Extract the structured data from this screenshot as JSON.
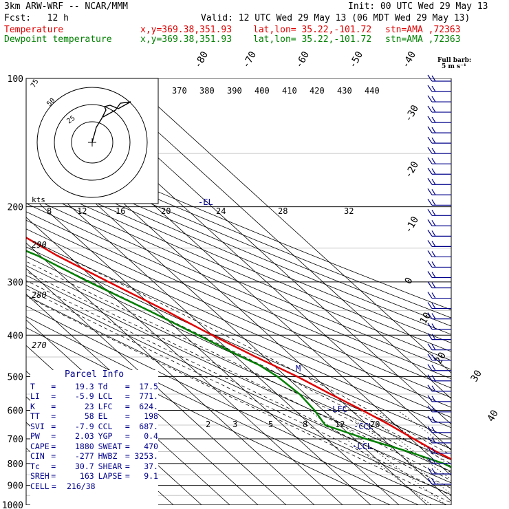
{
  "header": {
    "model": "3km ARW-WRF -- NCAR/MMM",
    "init": "Init: 00 UTC Wed 29 May 13",
    "fcst": "Fcst:   12 h",
    "valid": "Valid: 12 UTC Wed 29 May 13 (06 MDT Wed 29 May 13)",
    "temp_label": "Temperature",
    "dew_label": "Dewpoint temperature",
    "xy": "x,y=369.38,351.93",
    "latlon": "lat,lon= 35.22,-101.72",
    "stn": "stn=AMA ,72363"
  },
  "colors": {
    "temperature": "#e00000",
    "dewpoint": "#008000",
    "text": "#000000",
    "annotation": "#00008b",
    "hodograph": "#000000"
  },
  "barb_header": {
    "line1": "Full barb:",
    "line2": "5 m s⁻¹"
  },
  "parcel_info": {
    "title": "Parcel Info",
    "rows": [
      {
        "l1": "T",
        "v1": "19.3",
        "l2": "Td",
        "v2": "17.5"
      },
      {
        "l1": "LI",
        "v1": "-5.9",
        "l2": "LCL",
        "v2": "771."
      },
      {
        "l1": "K",
        "v1": "23",
        "l2": "LFC",
        "v2": "624."
      },
      {
        "l1": "TT",
        "v1": "58",
        "l2": "EL",
        "v2": "198"
      },
      {
        "l1": "SVI",
        "v1": "-7.9",
        "l2": "CCL",
        "v2": "687."
      },
      {
        "l1": "PW",
        "v1": "2.03",
        "l2": "YGP",
        "v2": "0.4"
      },
      {
        "l1": "CAPE",
        "v1": "1880",
        "l2": "SWEAT",
        "v2": "470"
      },
      {
        "l1": "CIN",
        "v1": "-277",
        "l2": "HWBZ",
        "v2": "3253."
      },
      {
        "l1": "Tc",
        "v1": "30.7",
        "l2": "SHEAR",
        "v2": "37."
      },
      {
        "l1": "SREH",
        "v1": "163",
        "l2": "LAPSE",
        "v2": "9.1"
      },
      {
        "l1": "CELL",
        "v1": "216/38",
        "l2": "",
        "v2": ""
      }
    ]
  },
  "chart_data": {
    "type": "skew-t",
    "pressure_levels": [
      100,
      200,
      300,
      400,
      500,
      600,
      700,
      800,
      900,
      1000
    ],
    "isotherm_labels": [
      "-80",
      "-70",
      "-60",
      "-50",
      "-40",
      "-30",
      "-20",
      "-10",
      "0",
      "10",
      "20",
      "30",
      "40"
    ],
    "theta_e_labels": [
      "370",
      "380",
      "390",
      "400",
      "410",
      "420",
      "430",
      "440"
    ],
    "hodo_speed_labels": [
      "8",
      "12",
      "16",
      "20",
      "24",
      "28",
      "32"
    ],
    "hodo_units": "kts",
    "mixing_ratio_labels": [
      "2",
      "3",
      "5",
      "8",
      "12",
      "20"
    ],
    "dry_adiabat_labels": [
      "290",
      "280",
      "270"
    ],
    "hodo_ring_labels": [
      "75",
      "50",
      "25"
    ],
    "annotations": [
      {
        "text": "-EL",
        "pressure": 198
      },
      {
        "text": "-LFC",
        "pressure": 624
      },
      {
        "text": "-CCL",
        "pressure": 687
      },
      {
        "text": "-LCL",
        "pressure": 771
      },
      {
        "text": "M",
        "pressure": 500
      }
    ],
    "temperature": [
      [
        100,
        -57
      ],
      [
        125,
        -59
      ],
      [
        150,
        -56
      ],
      [
        175,
        -52
      ],
      [
        200,
        -55
      ],
      [
        230,
        -49
      ],
      [
        260,
        -44
      ],
      [
        300,
        -36
      ],
      [
        350,
        -27
      ],
      [
        400,
        -20
      ],
      [
        450,
        -13
      ],
      [
        500,
        -6
      ],
      [
        550,
        -1
      ],
      [
        600,
        4
      ],
      [
        650,
        8
      ],
      [
        700,
        11
      ],
      [
        750,
        14
      ],
      [
        790,
        17
      ],
      [
        800,
        16
      ],
      [
        830,
        15
      ],
      [
        860,
        18
      ],
      [
        875,
        19
      ]
    ],
    "dewpoint": [
      [
        100,
        -78
      ],
      [
        125,
        -83
      ],
      [
        150,
        -87
      ],
      [
        175,
        -87
      ],
      [
        200,
        -72
      ],
      [
        230,
        -62
      ],
      [
        260,
        -51
      ],
      [
        300,
        -43
      ],
      [
        350,
        -33
      ],
      [
        400,
        -25
      ],
      [
        450,
        -18
      ],
      [
        470,
        -15
      ],
      [
        500,
        -13
      ],
      [
        550,
        -12
      ],
      [
        600,
        -13
      ],
      [
        650,
        -15
      ],
      [
        700,
        -6
      ],
      [
        750,
        4
      ],
      [
        800,
        12
      ],
      [
        840,
        15
      ],
      [
        860,
        17
      ],
      [
        875,
        17.5
      ]
    ],
    "wind_barbs": {
      "count": 40,
      "side": "right"
    }
  }
}
